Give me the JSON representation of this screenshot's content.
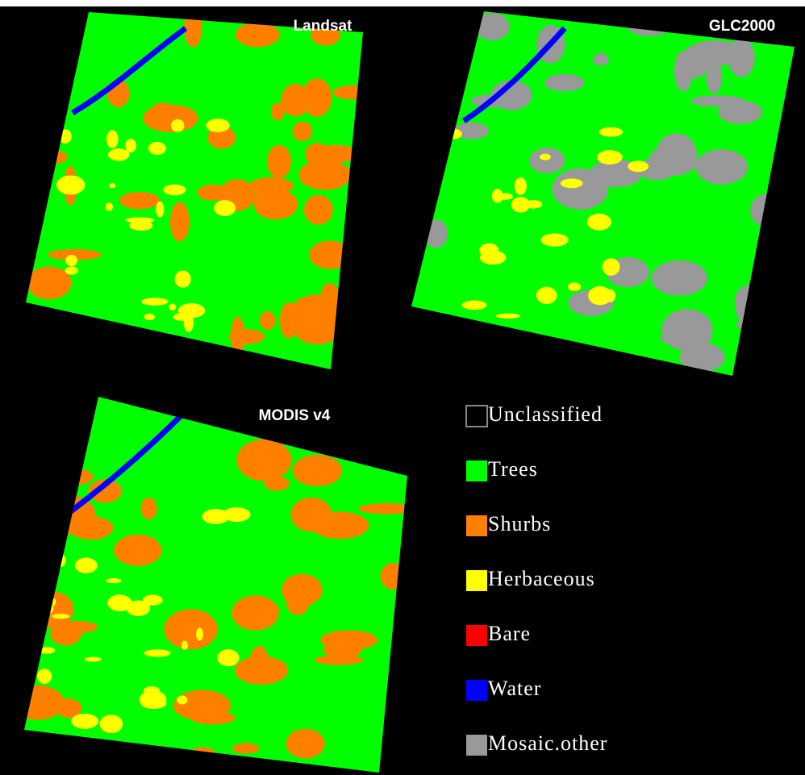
{
  "maps": [
    {
      "title": "Landsat",
      "patch_color": "#ff7f00"
    },
    {
      "title": "GLC2000",
      "patch_color": "#999999"
    },
    {
      "title": "MODIS v4",
      "patch_color": "#ff7f00"
    }
  ],
  "legend": [
    {
      "label": "Unclassified",
      "color": "#000000"
    },
    {
      "label": "Trees",
      "color": "#00ff00"
    },
    {
      "label": "Shurbs",
      "color": "#ff7f00"
    },
    {
      "label": "Herbaceous",
      "color": "#ffff00"
    },
    {
      "label": "Bare",
      "color": "#ff0000"
    },
    {
      "label": "Water",
      "color": "#0000ff"
    },
    {
      "label": "Mosaic.other",
      "color": "#999999"
    }
  ]
}
